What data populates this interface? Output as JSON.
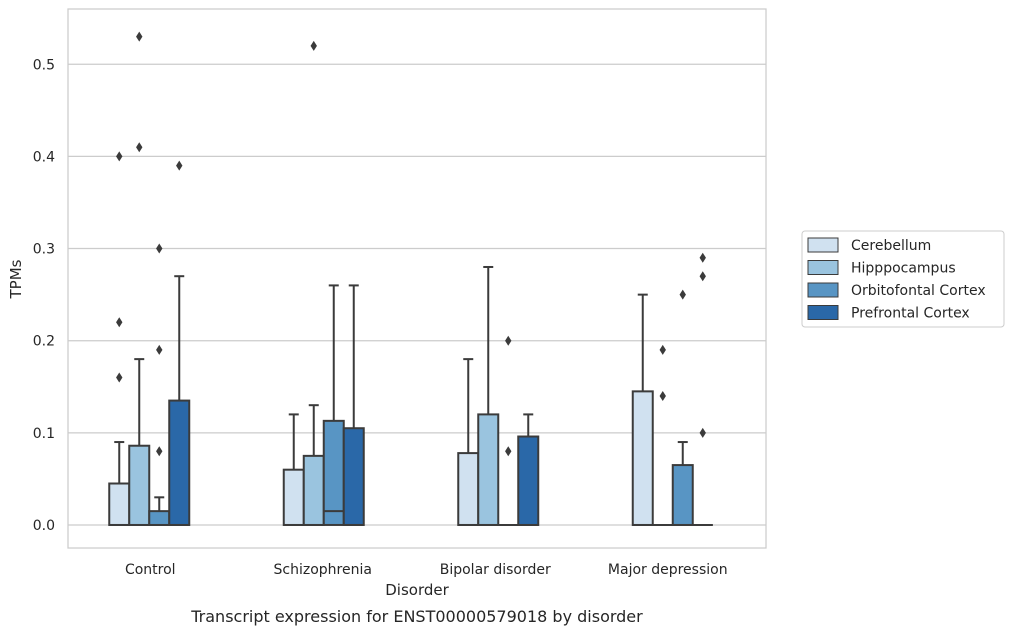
{
  "chart_data": {
    "type": "box",
    "caption": "Transcript expression for ENST00000579018 by disorder",
    "xlabel": "Disorder",
    "ylabel": "TPMs",
    "categories": [
      "Control",
      "Schizophrenia",
      "Bipolar disorder",
      "Major depression"
    ],
    "ylim": [
      -0.025,
      0.56
    ],
    "yticks": [
      "0.0",
      "0.1",
      "0.2",
      "0.3",
      "0.4",
      "0.5"
    ],
    "grid": true,
    "legend_position": "right",
    "series": [
      {
        "name": "Cerebellum",
        "color": "#d0e1f0",
        "boxes": [
          {
            "q1": 0.0,
            "median": 0.0,
            "q3": 0.045,
            "whisker_low": 0.0,
            "whisker_high": 0.09,
            "outliers": [
              0.16,
              0.22,
              0.4
            ]
          },
          {
            "q1": 0.0,
            "median": 0.0,
            "q3": 0.06,
            "whisker_low": 0.0,
            "whisker_high": 0.12,
            "outliers": []
          },
          {
            "q1": 0.0,
            "median": 0.0,
            "q3": 0.078,
            "whisker_low": 0.0,
            "whisker_high": 0.18,
            "outliers": []
          },
          {
            "q1": 0.0,
            "median": 0.0,
            "q3": 0.145,
            "whisker_low": 0.0,
            "whisker_high": 0.25,
            "outliers": []
          }
        ]
      },
      {
        "name": "Hipppocampus",
        "color": "#9ac4df",
        "boxes": [
          {
            "q1": 0.0,
            "median": 0.0,
            "q3": 0.086,
            "whisker_low": 0.0,
            "whisker_high": 0.18,
            "outliers": [
              0.41,
              0.53
            ]
          },
          {
            "q1": 0.0,
            "median": 0.0,
            "q3": 0.075,
            "whisker_low": 0.0,
            "whisker_high": 0.13,
            "outliers": [
              0.52
            ]
          },
          {
            "q1": 0.0,
            "median": 0.0,
            "q3": 0.12,
            "whisker_low": 0.0,
            "whisker_high": 0.28,
            "outliers": []
          },
          {
            "q1": 0.0,
            "median": 0.0,
            "q3": 0.0,
            "whisker_low": 0.0,
            "whisker_high": 0.0,
            "outliers": [
              0.14,
              0.19
            ]
          }
        ]
      },
      {
        "name": "Orbitofontal Cortex",
        "color": "#5895c4",
        "boxes": [
          {
            "q1": 0.0,
            "median": 0.0,
            "q3": 0.015,
            "whisker_low": 0.0,
            "whisker_high": 0.03,
            "outliers": [
              0.08,
              0.19,
              0.3
            ]
          },
          {
            "q1": 0.0,
            "median": 0.015,
            "q3": 0.113,
            "whisker_low": 0.0,
            "whisker_high": 0.26,
            "outliers": []
          },
          {
            "q1": 0.0,
            "median": 0.0,
            "q3": 0.0,
            "whisker_low": 0.0,
            "whisker_high": 0.0,
            "outliers": [
              0.08,
              0.2
            ]
          },
          {
            "q1": 0.0,
            "median": 0.0,
            "q3": 0.065,
            "whisker_low": 0.0,
            "whisker_high": 0.09,
            "outliers": [
              0.25
            ]
          }
        ]
      },
      {
        "name": "Prefrontal Cortex",
        "color": "#2a68a8",
        "boxes": [
          {
            "q1": 0.0,
            "median": 0.0,
            "q3": 0.135,
            "whisker_low": 0.0,
            "whisker_high": 0.27,
            "outliers": [
              0.39
            ]
          },
          {
            "q1": 0.0,
            "median": 0.0,
            "q3": 0.105,
            "whisker_low": 0.0,
            "whisker_high": 0.26,
            "outliers": []
          },
          {
            "q1": 0.0,
            "median": 0.0,
            "q3": 0.096,
            "whisker_low": 0.0,
            "whisker_high": 0.12,
            "outliers": []
          },
          {
            "q1": 0.0,
            "median": 0.0,
            "q3": 0.0,
            "whisker_low": 0.0,
            "whisker_high": 0.0,
            "outliers": [
              0.1,
              0.27,
              0.29
            ]
          }
        ]
      }
    ]
  }
}
